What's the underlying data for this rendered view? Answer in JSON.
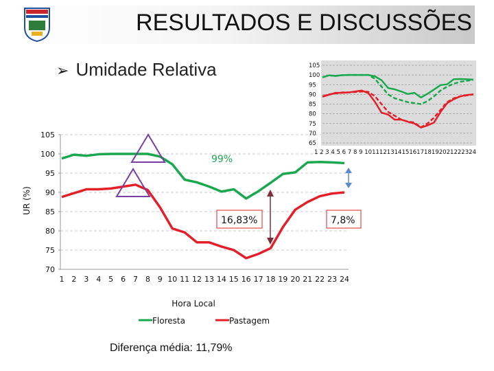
{
  "title": "RESULTADOS E DISCUSSÕES",
  "bullet": "Umidade Relativa",
  "footer": "Diferença média: 11,79%",
  "colors": {
    "floresta": "#1aa84f",
    "pastagem": "#e3202a",
    "triangle": "#7a3fa0",
    "arrow": "#5b8ccf"
  },
  "chart_data": [
    {
      "type": "line",
      "ylabel": "UR (%)",
      "xlabel": "Hora Local",
      "x": [
        1,
        2,
        3,
        4,
        5,
        6,
        7,
        8,
        9,
        10,
        11,
        12,
        13,
        14,
        15,
        16,
        17,
        18,
        19,
        20,
        21,
        22,
        23,
        24
      ],
      "ylim": [
        70,
        105
      ],
      "yticks": [
        70,
        75,
        80,
        85,
        90,
        95,
        100,
        105
      ],
      "grid": true,
      "legend": "bottom",
      "series": [
        {
          "name": "Floresta",
          "color": "#1aa84f",
          "values": [
            98.8,
            99.8,
            99.5,
            99.9,
            100,
            100,
            100,
            100,
            99.3,
            97.3,
            93.3,
            92.6,
            91.5,
            90.2,
            90.8,
            88.4,
            90.3,
            92.5,
            94.8,
            95.2,
            97.8,
            97.9,
            97.8,
            97.6
          ]
        },
        {
          "name": "Pastagem",
          "color": "#e3202a",
          "values": [
            88.8,
            89.8,
            90.8,
            90.8,
            91,
            91.5,
            92,
            90.6,
            86.1,
            80.6,
            79.6,
            77,
            77,
            75.9,
            75,
            72.9,
            74,
            75.5,
            81,
            85.5,
            87.5,
            89,
            89.7,
            90
          ]
        }
      ],
      "annotations": [
        "99%",
        "16,83%",
        "7,8%"
      ]
    },
    {
      "type": "line",
      "x": [
        1,
        2,
        3,
        4,
        5,
        6,
        7,
        8,
        9,
        10,
        11,
        12,
        13,
        14,
        15,
        16,
        17,
        18,
        19,
        20,
        21,
        22,
        23,
        24
      ],
      "xtick_text": "1 2 3 4 5 6 7 8 9 101112131415161718192021222324",
      "ylim": [
        65,
        105
      ],
      "yticks": [
        65,
        70,
        75,
        80,
        85,
        90,
        95,
        100,
        105
      ],
      "grid": true,
      "series": [
        {
          "color": "#1aa84f",
          "values": [
            98.8,
            99.8,
            99.5,
            99.9,
            100,
            100,
            100,
            100,
            99.3,
            97.3,
            93.3,
            92.6,
            91.5,
            90.2,
            90.8,
            88.4,
            90.3,
            92.5,
            94.8,
            95.2,
            97.8,
            97.9,
            97.8,
            97.6
          ]
        },
        {
          "color": "#1aa84f",
          "values": [
            98.8,
            99.8,
            99.5,
            99.9,
            100,
            100,
            100,
            100,
            98,
            94,
            90,
            88,
            87,
            86,
            85.5,
            85,
            86.5,
            89,
            92,
            94,
            95.5,
            96.5,
            97,
            97.5
          ]
        },
        {
          "color": "#e3202a",
          "values": [
            88.8,
            89.8,
            90.8,
            90.8,
            91,
            91.5,
            92,
            90.6,
            86.1,
            80.6,
            79.6,
            77,
            77,
            75.9,
            75,
            72.9,
            74,
            75.5,
            81,
            85.5,
            87.5,
            89,
            89.7,
            90
          ]
        },
        {
          "color": "#e3202a",
          "values": [
            89,
            90,
            90.5,
            91,
            91,
            91.2,
            91.5,
            91.3,
            89,
            85,
            81,
            79,
            77,
            76,
            75.5,
            73,
            75,
            78,
            82,
            86,
            88,
            89,
            89.5,
            90
          ]
        }
      ]
    }
  ]
}
